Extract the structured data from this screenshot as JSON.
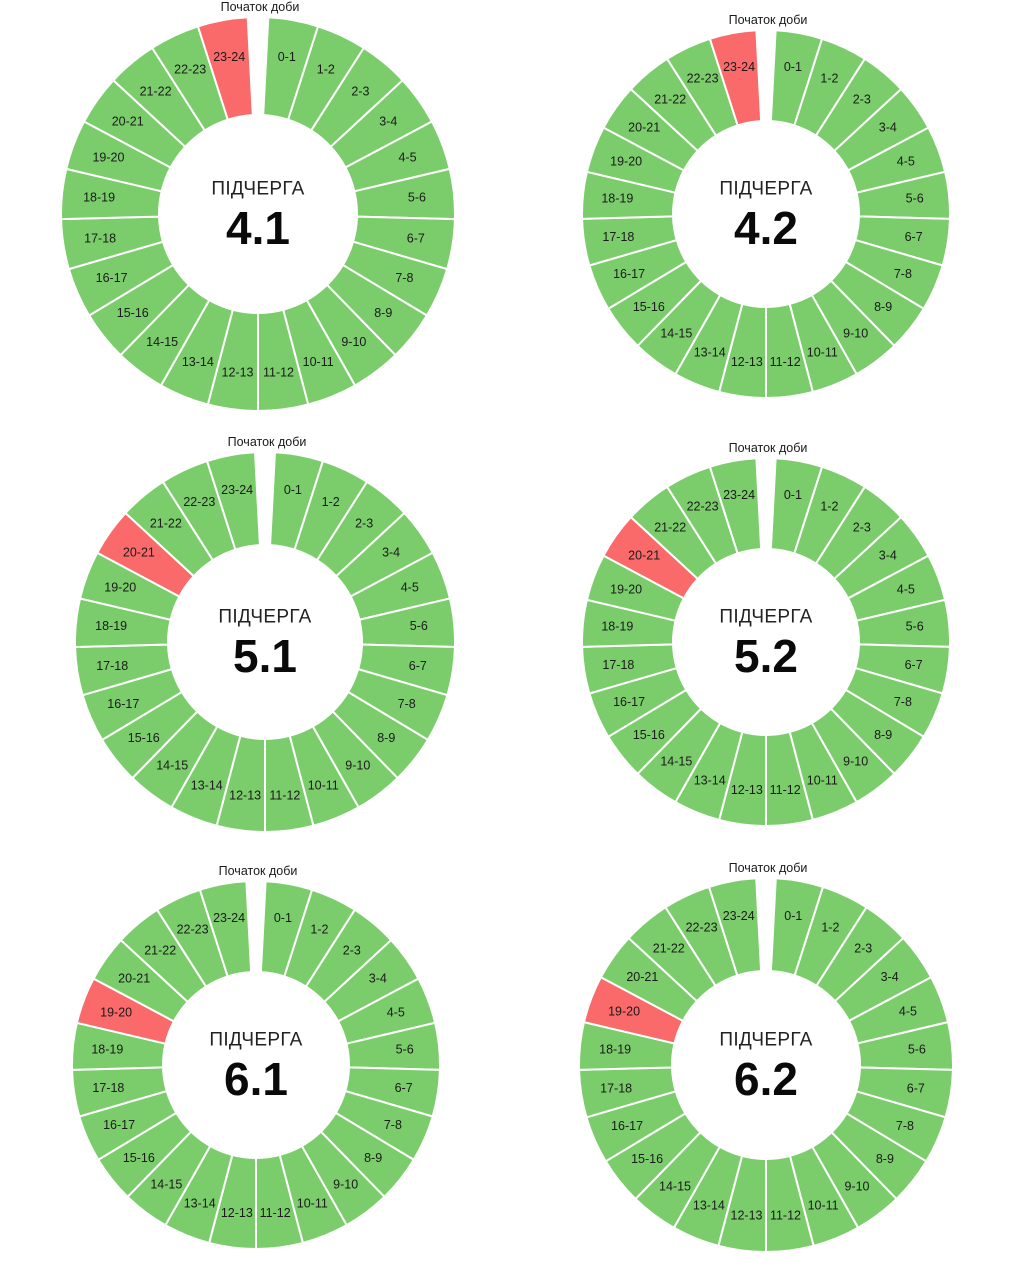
{
  "colors": {
    "on": "#7bcd6b",
    "off": "#fa6a6a",
    "divider": "#ffffff"
  },
  "start_label": "Початок доби",
  "subqueue_label": "ПІДЧЕРГА",
  "hour_labels": [
    "0-1",
    "1-2",
    "2-3",
    "3-4",
    "4-5",
    "5-6",
    "6-7",
    "7-8",
    "8-9",
    "9-10",
    "10-11",
    "11-12",
    "12-13",
    "13-14",
    "14-15",
    "15-16",
    "16-17",
    "17-18",
    "18-19",
    "19-20",
    "20-21",
    "21-22",
    "22-23",
    "23-24"
  ],
  "chart_data": [
    {
      "type": "pie",
      "title": "4.1",
      "categories_ref": "hour_labels",
      "state": [
        "on",
        "on",
        "on",
        "on",
        "on",
        "on",
        "on",
        "on",
        "on",
        "on",
        "on",
        "on",
        "on",
        "on",
        "on",
        "on",
        "on",
        "on",
        "on",
        "on",
        "on",
        "on",
        "on",
        "off"
      ]
    },
    {
      "type": "pie",
      "title": "4.2",
      "categories_ref": "hour_labels",
      "state": [
        "on",
        "on",
        "on",
        "on",
        "on",
        "on",
        "on",
        "on",
        "on",
        "on",
        "on",
        "on",
        "on",
        "on",
        "on",
        "on",
        "on",
        "on",
        "on",
        "on",
        "on",
        "on",
        "on",
        "off"
      ]
    },
    {
      "type": "pie",
      "title": "5.1",
      "categories_ref": "hour_labels",
      "state": [
        "on",
        "on",
        "on",
        "on",
        "on",
        "on",
        "on",
        "on",
        "on",
        "on",
        "on",
        "on",
        "on",
        "on",
        "on",
        "on",
        "on",
        "on",
        "on",
        "on",
        "off",
        "on",
        "on",
        "on"
      ]
    },
    {
      "type": "pie",
      "title": "5.2",
      "categories_ref": "hour_labels",
      "state": [
        "on",
        "on",
        "on",
        "on",
        "on",
        "on",
        "on",
        "on",
        "on",
        "on",
        "on",
        "on",
        "on",
        "on",
        "on",
        "on",
        "on",
        "on",
        "on",
        "on",
        "off",
        "on",
        "on",
        "on"
      ]
    },
    {
      "type": "pie",
      "title": "6.1",
      "categories_ref": "hour_labels",
      "state": [
        "on",
        "on",
        "on",
        "on",
        "on",
        "on",
        "on",
        "on",
        "on",
        "on",
        "on",
        "on",
        "on",
        "on",
        "on",
        "on",
        "on",
        "on",
        "on",
        "off",
        "on",
        "on",
        "on",
        "on"
      ]
    },
    {
      "type": "pie",
      "title": "6.2",
      "categories_ref": "hour_labels",
      "state": [
        "on",
        "on",
        "on",
        "on",
        "on",
        "on",
        "on",
        "on",
        "on",
        "on",
        "on",
        "on",
        "on",
        "on",
        "on",
        "on",
        "on",
        "on",
        "on",
        "off",
        "on",
        "on",
        "on",
        "on"
      ]
    }
  ]
}
